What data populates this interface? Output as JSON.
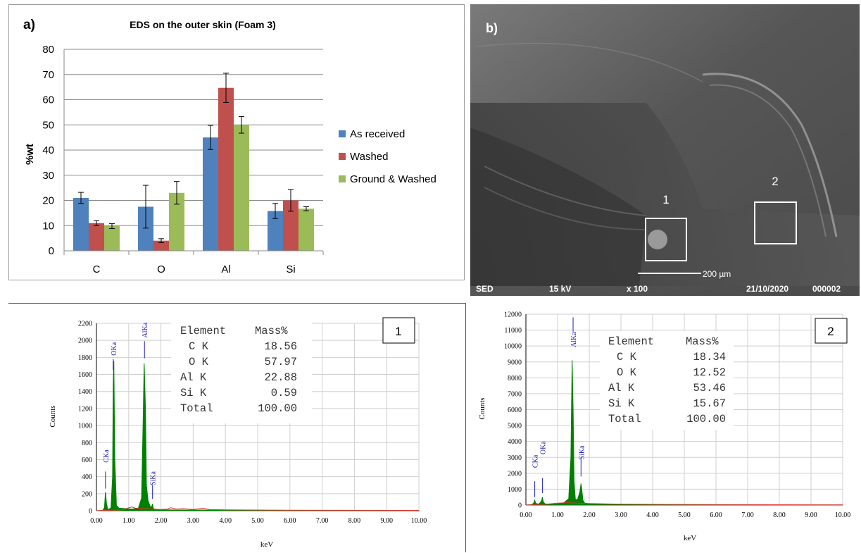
{
  "panel_a": {
    "tag": "a)",
    "legend": [
      {
        "label": "As received",
        "color": "#4F81BD"
      },
      {
        "label": "Washed",
        "color": "#C0504D"
      },
      {
        "label": "Ground & Washed",
        "color": "#9BBB59"
      }
    ]
  },
  "panel_b": {
    "tag": "b)",
    "region_labels": [
      "1",
      "2"
    ],
    "scalebar_label": "200 µm",
    "footer": {
      "mode": "SED",
      "voltage": "15 kV",
      "magnification": "x 100",
      "date": "21/10/2020",
      "image_no": "000002"
    }
  },
  "spectrum_1": {
    "box_label": "1",
    "table_header": [
      "Element",
      "Mass%"
    ],
    "table_rows": [
      [
        "C K",
        "18.56"
      ],
      [
        "O K",
        "57.97"
      ],
      [
        "Al K",
        "22.88"
      ],
      [
        "Si K",
        "0.59"
      ],
      [
        "Total",
        "100.00"
      ]
    ]
  },
  "spectrum_2": {
    "box_label": "2",
    "table_header": [
      "Element",
      "Mass%"
    ],
    "table_rows": [
      [
        "C K",
        "18.34"
      ],
      [
        "O K",
        "12.52"
      ],
      [
        "Al K",
        "53.46"
      ],
      [
        "Si K",
        "15.67"
      ],
      [
        "Total",
        "100.00"
      ]
    ]
  },
  "chart_data": [
    {
      "type": "bar",
      "title": "EDS on the outer skin (Foam 3)",
      "xlabel": "",
      "ylabel": "%wt",
      "categories": [
        "C",
        "O",
        "Al",
        "Si"
      ],
      "ylim": [
        0,
        80
      ],
      "yticks": [
        0,
        10,
        20,
        30,
        40,
        50,
        60,
        70,
        80
      ],
      "grid": true,
      "legend_position": "right",
      "series": [
        {
          "name": "As received",
          "color": "#4F81BD",
          "values": [
            21,
            17.5,
            45,
            15.8
          ],
          "error": [
            2.2,
            8.5,
            4.8,
            3
          ]
        },
        {
          "name": "Washed",
          "color": "#C0504D",
          "values": [
            11,
            4,
            64.7,
            20
          ],
          "error": [
            1,
            0.8,
            5.8,
            4.3
          ]
        },
        {
          "name": "Ground & Washed",
          "color": "#9BBB59",
          "values": [
            9.8,
            23,
            50,
            16.7
          ],
          "error": [
            1,
            4.5,
            3.3,
            0.8
          ]
        }
      ]
    },
    {
      "type": "line",
      "title": "",
      "xlabel": "keV",
      "ylabel": "Counts",
      "xlim": [
        0,
        10
      ],
      "ylim": [
        0,
        2200
      ],
      "xticks": [
        "0.00",
        "1.00",
        "2.00",
        "3.00",
        "4.00",
        "5.00",
        "6.00",
        "7.00",
        "8.00",
        "9.00",
        "10.00"
      ],
      "yticks": [
        0,
        200,
        400,
        600,
        800,
        1000,
        1200,
        1400,
        1600,
        1800,
        2000,
        2200
      ],
      "grid": true,
      "series": [
        {
          "name": "",
          "color": "#008000",
          "x": [
            0,
            0.2,
            0.25,
            0.28,
            0.31,
            0.35,
            0.45,
            0.5,
            0.52,
            0.54,
            0.57,
            0.62,
            0.7,
            0.9,
            1.1,
            1.3,
            1.4,
            1.45,
            1.48,
            1.52,
            1.55,
            1.6,
            1.68,
            1.72,
            1.74,
            1.76,
            1.8,
            1.9,
            2.2,
            2.7,
            3.3,
            4,
            5,
            6,
            8,
            10
          ],
          "y": [
            0,
            5,
            40,
            220,
            90,
            15,
            30,
            400,
            1460,
            1760,
            600,
            60,
            30,
            25,
            20,
            30,
            150,
            1100,
            1730,
            1200,
            300,
            120,
            40,
            55,
            80,
            30,
            15,
            10,
            10,
            8,
            8,
            5,
            5,
            4,
            3,
            2
          ]
        },
        {
          "name": "",
          "color": "#e03030",
          "x": [
            0,
            0.8,
            1.0,
            1.1,
            1.2,
            2.0,
            2.2,
            2.3,
            2.5,
            2.7,
            3.0,
            3.3,
            3.5,
            4,
            5,
            6,
            8,
            10
          ],
          "y": [
            0,
            10,
            35,
            45,
            30,
            15,
            20,
            35,
            20,
            25,
            15,
            30,
            15,
            10,
            8,
            6,
            5,
            4
          ]
        }
      ],
      "annotations": [
        "OKa",
        "AlKa",
        "CKa",
        "SiKa"
      ]
    },
    {
      "type": "line",
      "title": "",
      "xlabel": "keV",
      "ylabel": "Counts",
      "xlim": [
        0,
        10
      ],
      "ylim": [
        0,
        12000
      ],
      "xticks": [
        "0.00",
        "1.00",
        "2.00",
        "3.00",
        "4.00",
        "5.00",
        "6.00",
        "7.00",
        "8.00",
        "9.00",
        "10.00"
      ],
      "yticks": [
        0,
        1000,
        2000,
        3000,
        4000,
        5000,
        6000,
        7000,
        8000,
        9000,
        10000,
        11000,
        12000
      ],
      "grid": true,
      "series": [
        {
          "name": "",
          "color": "#008000",
          "x": [
            0,
            0.2,
            0.25,
            0.28,
            0.31,
            0.4,
            0.45,
            0.5,
            0.52,
            0.55,
            0.6,
            0.8,
            1.0,
            1.2,
            1.35,
            1.42,
            1.46,
            1.49,
            1.52,
            1.56,
            1.62,
            1.7,
            1.74,
            1.77,
            1.8,
            1.86,
            2.0,
            2.5,
            3,
            4,
            6,
            10
          ],
          "y": [
            0,
            40,
            150,
            300,
            100,
            60,
            150,
            300,
            500,
            200,
            80,
            60,
            80,
            150,
            400,
            3000,
            9100,
            6000,
            1500,
            400,
            300,
            800,
            1350,
            900,
            300,
            120,
            60,
            40,
            30,
            25,
            20,
            10
          ]
        },
        {
          "name": "",
          "color": "#e03030",
          "x": [
            0,
            0.6,
            1.0,
            1.3,
            1.6,
            2.0,
            2.5,
            3,
            4,
            5,
            6,
            8,
            10
          ],
          "y": [
            0,
            50,
            120,
            150,
            130,
            100,
            80,
            60,
            50,
            40,
            30,
            20,
            10
          ]
        }
      ],
      "annotations": [
        "AlKa",
        "CKa",
        "OKa",
        "SiKa"
      ]
    }
  ]
}
